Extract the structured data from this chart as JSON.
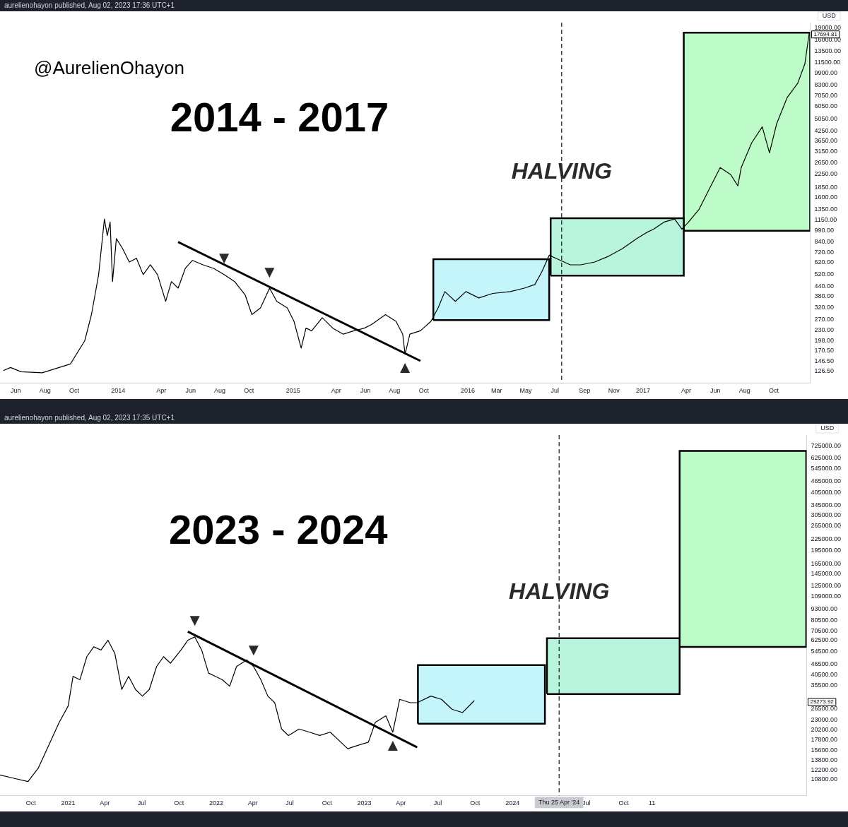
{
  "chart_data": [
    {
      "type": "line",
      "title": "2014 - 2017",
      "ylabel": "USD",
      "log": "y",
      "grid": false,
      "legend": false,
      "annotations": [
        "aurelienohayon published, Aug 02, 2023 17:36 UTC+1",
        "@AurelienOhayon",
        {
          "text": "HALVING",
          "x": "2016-07-15",
          "y": 2300
        },
        {
          "text": "▼",
          "x": "2014-08-10",
          "y": 520
        },
        {
          "text": "▼",
          "x": "2014-11-13",
          "y": 427
        },
        {
          "text": "▲",
          "x": "2015-08-23",
          "y": 163
        },
        "17694.81"
      ],
      "xlim": [
        "2013-04-29",
        "2017-12-16"
      ],
      "xticks": [
        {
          "value": "2013-06-01",
          "label": "Jun"
        },
        {
          "value": "2013-08-01",
          "label": "Aug"
        },
        {
          "value": "2013-10-01",
          "label": "Oct"
        },
        {
          "value": "2014-01-01",
          "label": "2014"
        },
        {
          "value": "2014-04-01",
          "label": "Apr"
        },
        {
          "value": "2014-06-01",
          "label": "Jun"
        },
        {
          "value": "2014-08-01",
          "label": "Aug"
        },
        {
          "value": "2014-10-01",
          "label": "Oct"
        },
        {
          "value": "2015-01-01",
          "label": "2015"
        },
        {
          "value": "2015-04-01",
          "label": "Apr"
        },
        {
          "value": "2015-06-01",
          "label": "Jun"
        },
        {
          "value": "2015-08-01",
          "label": "Aug"
        },
        {
          "value": "2015-10-01",
          "label": "Oct"
        },
        {
          "value": "2016-01-01",
          "label": "2016"
        },
        {
          "value": "2016-03-01",
          "label": "Mar"
        },
        {
          "value": "2016-05-01",
          "label": "May"
        },
        {
          "value": "2016-07-01",
          "label": "Jul"
        },
        {
          "value": "2016-09-01",
          "label": "Sep"
        },
        {
          "value": "2016-11-01",
          "label": "Nov"
        },
        {
          "value": "2017-01-01",
          "label": "2017"
        },
        {
          "value": "2017-04-01",
          "label": "Apr"
        },
        {
          "value": "2017-06-01",
          "label": "Jun"
        },
        {
          "value": "2017-08-01",
          "label": "Aug"
        },
        {
          "value": "2017-10-01",
          "label": "Oct"
        }
      ],
      "ylim": [
        107,
        20600
      ],
      "yticks": [
        {
          "value": 126.5,
          "label": "126.50"
        },
        {
          "value": 146.5,
          "label": "146.50"
        },
        {
          "value": 170.5,
          "label": "170.50"
        },
        {
          "value": 198,
          "label": "198.00"
        },
        {
          "value": 230,
          "label": "230.00"
        },
        {
          "value": 270,
          "label": "270.00"
        },
        {
          "value": 320,
          "label": "320.00"
        },
        {
          "value": 380,
          "label": "380.00"
        },
        {
          "value": 440,
          "label": "440.00"
        },
        {
          "value": 520,
          "label": "520.00"
        },
        {
          "value": 620,
          "label": "620.00"
        },
        {
          "value": 720,
          "label": "720.00"
        },
        {
          "value": 840,
          "label": "840.00"
        },
        {
          "value": 990,
          "label": "990.00"
        },
        {
          "value": 1150,
          "label": "1150.00"
        },
        {
          "value": 1350,
          "label": "1350.00"
        },
        {
          "value": 1600,
          "label": "1600.00"
        },
        {
          "value": 1850,
          "label": "1850.00"
        },
        {
          "value": 2250,
          "label": "2250.00"
        },
        {
          "value": 2650,
          "label": "2650.00"
        },
        {
          "value": 3150,
          "label": "3150.00"
        },
        {
          "value": 3650,
          "label": "3650.00"
        },
        {
          "value": 4250,
          "label": "4250.00"
        },
        {
          "value": 5050,
          "label": "5050.00"
        },
        {
          "value": 6050,
          "label": "6050.00"
        },
        {
          "value": 7050,
          "label": "7050.00"
        },
        {
          "value": 8300,
          "label": "8300.00"
        },
        {
          "value": 9900,
          "label": "9900.00"
        },
        {
          "value": 11500,
          "label": "11500.00"
        },
        {
          "value": 13500,
          "label": "13500.00"
        },
        {
          "value": 16000,
          "label": "16000.00"
        },
        {
          "value": 19000,
          "label": "19000.00"
        }
      ],
      "ref_lines": [
        {
          "axis": "x",
          "value": "2016-07-15",
          "line_style": "dashed",
          "color": "#131722"
        }
      ],
      "series": [
        {
          "color": "#000000",
          "x": [
            "2013-05-06",
            "2013-05-21",
            "2013-06-12",
            "2013-07-26",
            "2013-09-23",
            "2013-10-23",
            "2013-11-06",
            "2013-11-21",
            "2013-12-03",
            "2013-12-09",
            "2013-12-15",
            "2013-12-20",
            "2013-12-28",
            "2014-01-10",
            "2014-01-24",
            "2014-02-08",
            "2014-02-22",
            "2014-03-09",
            "2014-03-24",
            "2014-04-10",
            "2014-04-22",
            "2014-05-06",
            "2014-05-21",
            "2014-06-05",
            "2014-06-27",
            "2014-07-19",
            "2014-08-10",
            "2014-09-01",
            "2014-09-23",
            "2014-10-07",
            "2014-10-25",
            "2014-11-13",
            "2014-11-28",
            "2014-12-20",
            "2015-01-03",
            "2015-01-18",
            "2015-01-28",
            "2015-02-09",
            "2015-03-03",
            "2015-03-25",
            "2015-04-16",
            "2015-05-08",
            "2015-05-30",
            "2015-06-14",
            "2015-07-13",
            "2015-08-04",
            "2015-08-18",
            "2015-08-23",
            "2015-09-02",
            "2015-09-24",
            "2015-10-16",
            "2015-10-31",
            "2015-11-14",
            "2015-12-06",
            "2015-12-28",
            "2016-01-24",
            "2016-02-22",
            "2016-03-30",
            "2016-04-28",
            "2016-05-20",
            "2016-06-04",
            "2016-06-19",
            "2016-07-03",
            "2016-08-02",
            "2016-08-24",
            "2016-09-22",
            "2016-10-21",
            "2016-11-19",
            "2016-12-19",
            "2017-01-08",
            "2017-01-23",
            "2017-02-14",
            "2017-03-08",
            "2017-03-23",
            "2017-04-06",
            "2017-04-28",
            "2017-05-20",
            "2017-06-11",
            "2017-07-03",
            "2017-07-18",
            "2017-07-25",
            "2017-08-16",
            "2017-09-07",
            "2017-09-22",
            "2017-10-07",
            "2017-10-29",
            "2017-11-20",
            "2017-12-05",
            "2017-12-14"
          ],
          "values": [
            128,
            134,
            126,
            124,
            141,
            198,
            290,
            520,
            1170,
            920,
            1120,
            470,
            880,
            760,
            625,
            660,
            520,
            600,
            520,
            352,
            470,
            427,
            570,
            640,
            600,
            570,
            520,
            470,
            387,
            290,
            320,
            427,
            352,
            320,
            263,
            178,
            238,
            229,
            277,
            238,
            218,
            229,
            238,
            251,
            290,
            263,
            218,
            163,
            218,
            229,
            263,
            320,
            406,
            352,
            406,
            370,
            395,
            406,
            427,
            450,
            545,
            690,
            660,
            600,
            600,
            625,
            680,
            760,
            880,
            960,
            1010,
            1120,
            1170,
            1010,
            1120,
            1350,
            1830,
            2480,
            2240,
            1900,
            2480,
            3570,
            4500,
            3080,
            4700,
            6900,
            8500,
            11300,
            17694.81
          ]
        },
        {
          "color": "#000000",
          "x": [
            "2014-05-06",
            "2015-09-24"
          ],
          "values": [
            837,
            147.6
          ]
        },
        {
          "type": "area",
          "color": "#c3f5fa",
          "x": [
            "2015-10-21",
            "2015-10-21",
            "2016-06-19",
            "2016-06-19",
            "2015-10-21"
          ],
          "values": [
            268,
            651,
            651,
            268,
            268
          ]
        },
        {
          "type": "area",
          "color": "#b8f5dc",
          "x": [
            "2016-06-22",
            "2016-06-22",
            "2017-03-27",
            "2017-03-27",
            "2016-06-22"
          ],
          "values": [
            512,
            1185,
            1185,
            512,
            512
          ]
        },
        {
          "type": "area",
          "color": "#bdfbc9",
          "x": [
            "2017-03-27",
            "2017-03-27",
            "2017-12-16",
            "2017-12-16",
            "2017-03-27"
          ],
          "values": [
            987,
            17800,
            17800,
            987,
            987
          ]
        }
      ]
    },
    {
      "type": "line",
      "title": "2023 - 2024",
      "ylabel": "USD",
      "log": "y",
      "grid": false,
      "legend": false,
      "annotations": [
        "aurelienohayon published, Aug 02, 2023 17:35 UTC+1",
        {
          "text": "HALVING",
          "x": "2024-04-25",
          "y": 114000
        },
        {
          "text": "▼",
          "x": "2021-11-09",
          "y": 65400
        },
        {
          "text": "▼",
          "x": "2022-04-03",
          "y": 45000
        },
        {
          "text": "▲",
          "x": "2023-03-12",
          "y": 19640
        },
        "29273.92"
      ],
      "xlim": [
        "2020-07-17",
        "2025-12-26"
      ],
      "xticks": [
        {
          "value": "2020-10-01",
          "label": "Oct"
        },
        {
          "value": "2021-01-01",
          "label": "2021"
        },
        {
          "value": "2021-04-01",
          "label": "Apr"
        },
        {
          "value": "2021-07-01",
          "label": "Jul"
        },
        {
          "value": "2021-10-01",
          "label": "Oct"
        },
        {
          "value": "2022-01-01",
          "label": "2022"
        },
        {
          "value": "2022-04-01",
          "label": "Apr"
        },
        {
          "value": "2022-07-01",
          "label": "Jul"
        },
        {
          "value": "2022-10-01",
          "label": "Oct"
        },
        {
          "value": "2023-01-01",
          "label": "2023"
        },
        {
          "value": "2023-04-01",
          "label": "Apr"
        },
        {
          "value": "2023-07-01",
          "label": "Jul"
        },
        {
          "value": "2023-10-01",
          "label": "Oct"
        },
        {
          "value": "2024-01-01",
          "label": "2024"
        },
        {
          "value": "2024-07-01",
          "label": "Jul"
        },
        {
          "value": "2024-10-01",
          "label": "Oct"
        },
        {
          "value": "2024-12-10",
          "label": "11"
        }
      ],
      "ylim": [
        8850,
        836000
      ],
      "yticks": [
        {
          "value": 10800,
          "label": "10800.00"
        },
        {
          "value": 12200,
          "label": "12200.00"
        },
        {
          "value": 13800,
          "label": "13800.00"
        },
        {
          "value": 15600,
          "label": "15600.00"
        },
        {
          "value": 17800,
          "label": "17800.00"
        },
        {
          "value": 20200,
          "label": "20200.00"
        },
        {
          "value": 23000,
          "label": "23000.00"
        },
        {
          "value": 26500,
          "label": "26500.00"
        },
        {
          "value": 35500,
          "label": "35500.00"
        },
        {
          "value": 40500,
          "label": "40500.00"
        },
        {
          "value": 46500,
          "label": "46500.00"
        },
        {
          "value": 54500,
          "label": "54500.00"
        },
        {
          "value": 62500,
          "label": "62500.00"
        },
        {
          "value": 70500,
          "label": "70500.00"
        },
        {
          "value": 80500,
          "label": "80500.00"
        },
        {
          "value": 93000,
          "label": "93000.00"
        },
        {
          "value": 109000,
          "label": "109000.00"
        },
        {
          "value": 125000,
          "label": "125000.00"
        },
        {
          "value": 145000,
          "label": "145000.00"
        },
        {
          "value": 165000,
          "label": "165000.00"
        },
        {
          "value": 195000,
          "label": "195000.00"
        },
        {
          "value": 225000,
          "label": "225000.00"
        },
        {
          "value": 265000,
          "label": "265000.00"
        },
        {
          "value": 305000,
          "label": "305000.00"
        },
        {
          "value": 345000,
          "label": "345000.00"
        },
        {
          "value": 405000,
          "label": "405000.00"
        },
        {
          "value": 465000,
          "label": "465000.00"
        },
        {
          "value": 545000,
          "label": "545000.00"
        },
        {
          "value": 625000,
          "label": "625000.00"
        },
        {
          "value": 725000,
          "label": "725000.00"
        }
      ],
      "ref_lines": [
        {
          "axis": "x",
          "value": "2024-04-25",
          "label": "Thu 25 Apr '24",
          "line_style": "dashed",
          "color": "#131722"
        }
      ],
      "series": [
        {
          "color": "#000000",
          "x": [
            "2020-07-17",
            "2020-08-20",
            "2020-09-24",
            "2020-10-19",
            "2020-11-14",
            "2020-12-10",
            "2021-01-01",
            "2021-01-13",
            "2021-01-30",
            "2021-02-16",
            "2021-03-05",
            "2021-03-23",
            "2021-04-09",
            "2021-04-26",
            "2021-05-13",
            "2021-05-30",
            "2021-06-16",
            "2021-07-03",
            "2021-07-20",
            "2021-08-07",
            "2021-08-24",
            "2021-09-10",
            "2021-10-06",
            "2021-10-23",
            "2021-11-09",
            "2021-11-26",
            "2021-12-13",
            "2021-12-30",
            "2022-01-16",
            "2022-02-03",
            "2022-02-20",
            "2022-03-17",
            "2022-04-03",
            "2022-04-21",
            "2022-05-08",
            "2022-05-25",
            "2022-06-11",
            "2022-06-28",
            "2022-07-24",
            "2022-08-19",
            "2022-09-13",
            "2022-10-09",
            "2022-11-04",
            "2022-11-21",
            "2022-12-16",
            "2023-01-11",
            "2023-01-28",
            "2023-02-23",
            "2023-03-12",
            "2023-03-29",
            "2023-04-24",
            "2023-05-11",
            "2023-06-14",
            "2023-07-10",
            "2023-08-05",
            "2023-08-31",
            "2023-09-29"
          ],
          "values": [
            11440,
            10980,
            10530,
            12450,
            16630,
            22240,
            27350,
            39750,
            38100,
            50980,
            57700,
            55400,
            62700,
            53100,
            33700,
            39750,
            33700,
            30990,
            33700,
            45000,
            50980,
            46950,
            55400,
            62700,
            65400,
            55400,
            41400,
            39750,
            38100,
            35100,
            45000,
            48900,
            45000,
            38100,
            30990,
            28500,
            20450,
            18840,
            20450,
            19640,
            18840,
            19640,
            17330,
            15950,
            16630,
            17330,
            22240,
            24150,
            19640,
            29730,
            28500,
            28500,
            30990,
            29730,
            26250,
            25170,
            29273.92
          ]
        },
        {
          "color": "#000000",
          "x": [
            "2021-10-23",
            "2023-05-11"
          ],
          "values": [
            69900,
            16230
          ]
        },
        {
          "type": "area",
          "color": "#c3f5fa",
          "x": [
            "2023-05-13",
            "2023-05-13",
            "2024-03-21",
            "2024-03-21",
            "2023-05-13"
          ],
          "values": [
            21850,
            45800,
            45800,
            21850,
            21850
          ]
        },
        {
          "type": "area",
          "color": "#b8f5dc",
          "x": [
            "2024-03-26",
            "2024-03-26",
            "2025-02-16",
            "2025-02-16",
            "2024-03-26"
          ],
          "values": [
            31760,
            64300,
            64300,
            31760,
            31760
          ]
        },
        {
          "type": "area",
          "color": "#bdfbc9",
          "x": [
            "2025-02-16",
            "2025-02-16",
            "2025-12-25",
            "2025-12-25",
            "2025-02-16"
          ],
          "values": [
            57700,
            684700,
            684700,
            57700,
            57700
          ]
        }
      ]
    }
  ]
}
